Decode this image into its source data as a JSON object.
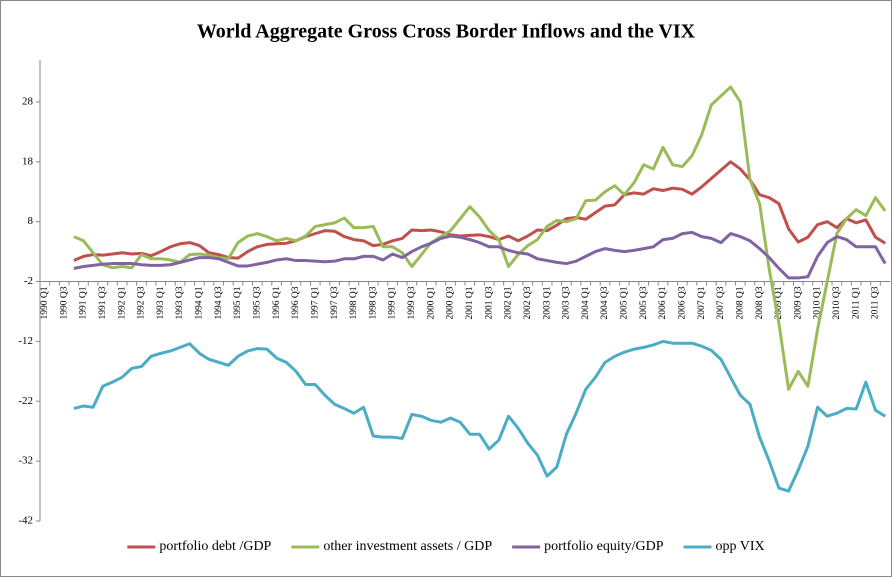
{
  "chart_data": {
    "type": "line",
    "title": "World Aggregate Gross Cross Border Inflows and the VIX",
    "categories": [
      "1990 Q1",
      null,
      "1990 Q3",
      null,
      "1991 Q1",
      null,
      "1991 Q3",
      null,
      "1992 Q1",
      null,
      "1992 Q3",
      null,
      "1993 Q1",
      null,
      "1993 Q3",
      null,
      "1994 Q1",
      null,
      "1994 Q3",
      null,
      "1995 Q1",
      null,
      "1995 Q3",
      null,
      "1996 Q1",
      null,
      "1996 Q3",
      null,
      "1997 Q1",
      null,
      "1997 Q3",
      null,
      "1998 Q1",
      null,
      "1998 Q3",
      null,
      "1999 Q1",
      null,
      "1999 Q3",
      null,
      "2000 Q1",
      null,
      "2000 Q3",
      null,
      "2001 Q1",
      null,
      "2001 Q3",
      null,
      "2002 Q1",
      null,
      "2002 Q3",
      null,
      "2003 Q1",
      null,
      "2003 Q3",
      null,
      "2004 Q1",
      null,
      "2004 Q3",
      null,
      "2005 Q1",
      null,
      "2005 Q3",
      null,
      "2006 Q1",
      null,
      "2006 Q3",
      null,
      "2007 Q1",
      null,
      "2007 Q3",
      null,
      "2008 Q1",
      null,
      "2008 Q3",
      null,
      "2009 Q1",
      null,
      "2009 Q3",
      null,
      "2010 Q1",
      null,
      "2010 Q3",
      null,
      "2011 Q1",
      null,
      "2011 Q3",
      null
    ],
    "series": [
      {
        "name": "portfolio debt /GDP",
        "color": "#c0504d",
        "values": [
          null,
          null,
          null,
          1.5,
          2.2,
          2.5,
          2.4,
          2.6,
          2.8,
          2.6,
          2.7,
          2.3,
          3.0,
          3.8,
          4.3,
          4.5,
          4.0,
          2.8,
          2.5,
          2.0,
          1.9,
          3.0,
          3.8,
          4.2,
          4.3,
          4.4,
          4.8,
          5.5,
          6.0,
          6.5,
          6.4,
          5.5,
          5.0,
          4.8,
          4.0,
          4.2,
          4.8,
          5.2,
          6.6,
          6.5,
          6.6,
          6.3,
          5.8,
          5.6,
          5.7,
          5.8,
          5.5,
          5.0,
          5.6,
          4.8,
          5.6,
          6.6,
          6.5,
          7.4,
          8.5,
          8.7,
          8.4,
          9.5,
          10.6,
          10.8,
          12.5,
          12.8,
          12.6,
          13.5,
          13.2,
          13.6,
          13.4,
          12.6,
          13.8,
          15.2,
          16.6,
          18.0,
          16.8,
          15.0,
          12.5,
          12.0,
          11.0,
          6.8,
          4.6,
          5.4,
          7.5,
          8.0,
          7.0,
          8.5,
          7.8,
          8.3,
          5.4,
          4.4
        ]
      },
      {
        "name": "other investment assets / GDP",
        "color": "#9bbb59",
        "values": [
          null,
          null,
          null,
          5.5,
          4.8,
          2.8,
          0.8,
          0.3,
          0.5,
          0.3,
          2.5,
          1.8,
          1.8,
          1.6,
          1.2,
          2.5,
          2.6,
          2.4,
          2.0,
          1.8,
          4.5,
          5.6,
          6.0,
          5.5,
          4.8,
          5.2,
          4.8,
          5.6,
          7.2,
          7.5,
          7.8,
          8.6,
          7.0,
          7.0,
          7.2,
          3.8,
          3.8,
          2.8,
          0.5,
          2.5,
          4.5,
          5.5,
          6.5,
          8.5,
          10.5,
          8.8,
          6.5,
          5.0,
          0.5,
          2.5,
          4.0,
          5.0,
          7.2,
          8.2,
          8.0,
          8.5,
          11.5,
          11.6,
          13.0,
          14.0,
          12.5,
          14.5,
          17.5,
          16.8,
          20.4,
          17.5,
          17.2,
          19.0,
          22.5,
          27.5,
          29.0,
          30.5,
          28.0,
          15.0,
          11.0,
          0.0,
          -9.0,
          -20.0,
          -17.0,
          -19.5,
          -10.0,
          -2.0,
          6.0,
          8.5,
          10.0,
          9.0,
          12.0,
          9.8
        ]
      },
      {
        "name": "portfolio equity/GDP",
        "color": "#8064a2",
        "values": [
          null,
          null,
          null,
          0.2,
          0.5,
          0.7,
          0.9,
          1.0,
          1.0,
          1.0,
          0.8,
          0.7,
          0.7,
          0.8,
          1.2,
          1.6,
          2.0,
          2.0,
          1.8,
          1.2,
          0.6,
          0.6,
          0.9,
          1.2,
          1.6,
          1.8,
          1.5,
          1.5,
          1.4,
          1.3,
          1.4,
          1.8,
          1.8,
          2.2,
          2.2,
          1.6,
          2.6,
          2.0,
          3.0,
          3.8,
          4.4,
          5.2,
          5.6,
          5.4,
          5.0,
          4.5,
          3.8,
          3.8,
          3.2,
          2.8,
          2.6,
          1.8,
          1.5,
          1.2,
          1.0,
          1.4,
          2.2,
          3.0,
          3.5,
          3.2,
          3.0,
          3.2,
          3.5,
          3.8,
          5.0,
          5.2,
          6.0,
          6.2,
          5.5,
          5.2,
          4.5,
          6.0,
          5.5,
          4.8,
          3.5,
          2.0,
          0.2,
          -1.4,
          -1.4,
          -1.2,
          2.2,
          4.5,
          5.5,
          5.0,
          3.8,
          3.8,
          3.8,
          1.0
        ]
      },
      {
        "name": "opp VIX",
        "color": "#4bacc6",
        "values": [
          null,
          null,
          null,
          -23.2,
          -22.8,
          -23.0,
          -19.5,
          -18.8,
          -18.0,
          -16.5,
          -16.2,
          -14.5,
          -14.0,
          -13.6,
          -13.0,
          -12.4,
          -14.0,
          -15.0,
          -15.5,
          -16.0,
          -14.5,
          -13.6,
          -13.2,
          -13.3,
          -14.8,
          -15.5,
          -17.0,
          -19.2,
          -19.2,
          -21.0,
          -22.5,
          -23.2,
          -24.0,
          -23.0,
          -27.8,
          -28.0,
          -28.0,
          -28.2,
          -24.2,
          -24.5,
          -25.2,
          -25.5,
          -24.8,
          -25.5,
          -27.5,
          -27.5,
          -30.0,
          -28.5,
          -24.5,
          -26.5,
          -29.0,
          -31.0,
          -34.5,
          -33.0,
          -27.5,
          -24.0,
          -20.0,
          -18.0,
          -15.5,
          -14.5,
          -13.8,
          -13.3,
          -13.0,
          -12.6,
          -12.0,
          -12.3,
          -12.3,
          -12.3,
          -12.8,
          -13.5,
          -15.0,
          -18.0,
          -21.0,
          -22.5,
          -28.0,
          -32.0,
          -36.5,
          -37.0,
          -33.5,
          -29.5,
          -23.0,
          -24.5,
          -24.0,
          -23.2,
          -23.3,
          -18.8,
          -23.5,
          -24.5
        ]
      }
    ],
    "ylim": [
      -42,
      35
    ],
    "yticks": [
      -42,
      -32,
      -22,
      -12,
      -2,
      8,
      18,
      28
    ],
    "x_axis_at": -2,
    "legend": "bottom"
  }
}
